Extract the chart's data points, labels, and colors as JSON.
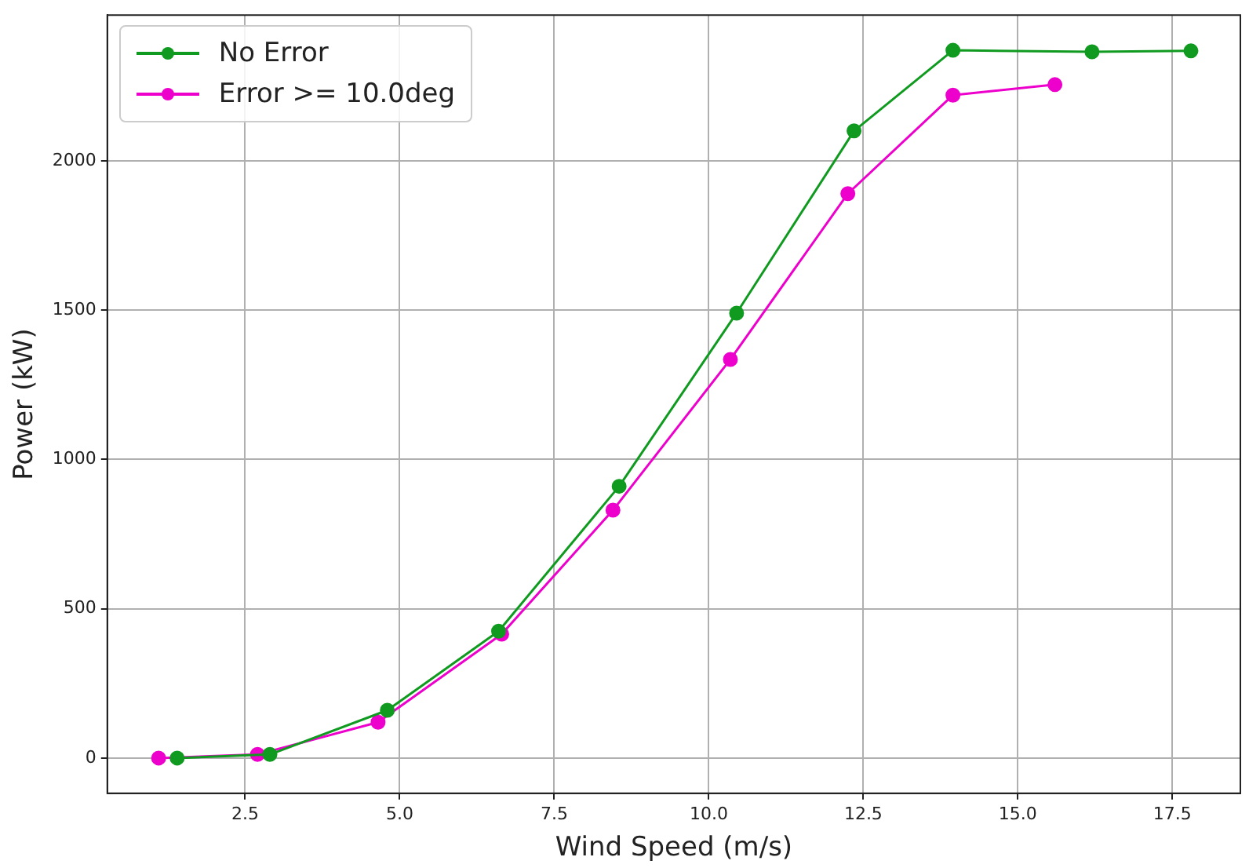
{
  "chart_data": {
    "type": "line",
    "xlabel": "Wind Speed (m/s)",
    "ylabel": "Power (kW)",
    "xlim": [
      0.27,
      18.6
    ],
    "ylim": [
      -118,
      2488
    ],
    "xticks": [
      2.5,
      {
        "value": 5,
        "label": "5.0"
      },
      7.5,
      {
        "value": 10,
        "label": "10.0"
      },
      12.5,
      {
        "value": 15,
        "label": "15.0"
      },
      17.5
    ],
    "yticks": [
      0,
      500,
      1000,
      1500,
      2000
    ],
    "grid": true,
    "legend": "top left",
    "marker": "circle",
    "line_style": "solid",
    "series": [
      {
        "name": "No Error",
        "color": "#109a20",
        "x": [
          1.4,
          2.9,
          4.8,
          6.6,
          8.55,
          10.45,
          12.35,
          13.95,
          16.2,
          17.8
        ],
        "values": [
          0,
          12,
          160,
          425,
          910,
          1490,
          2100,
          2370,
          2365,
          2368
        ]
      },
      {
        "name": "Error >= 10.0deg",
        "color": "#ee00cc",
        "x": [
          1.1,
          2.7,
          4.65,
          6.65,
          8.45,
          10.35,
          12.25,
          13.95,
          15.6
        ],
        "values": [
          0,
          12,
          120,
          415,
          830,
          1335,
          1890,
          2220,
          2255
        ]
      }
    ]
  }
}
